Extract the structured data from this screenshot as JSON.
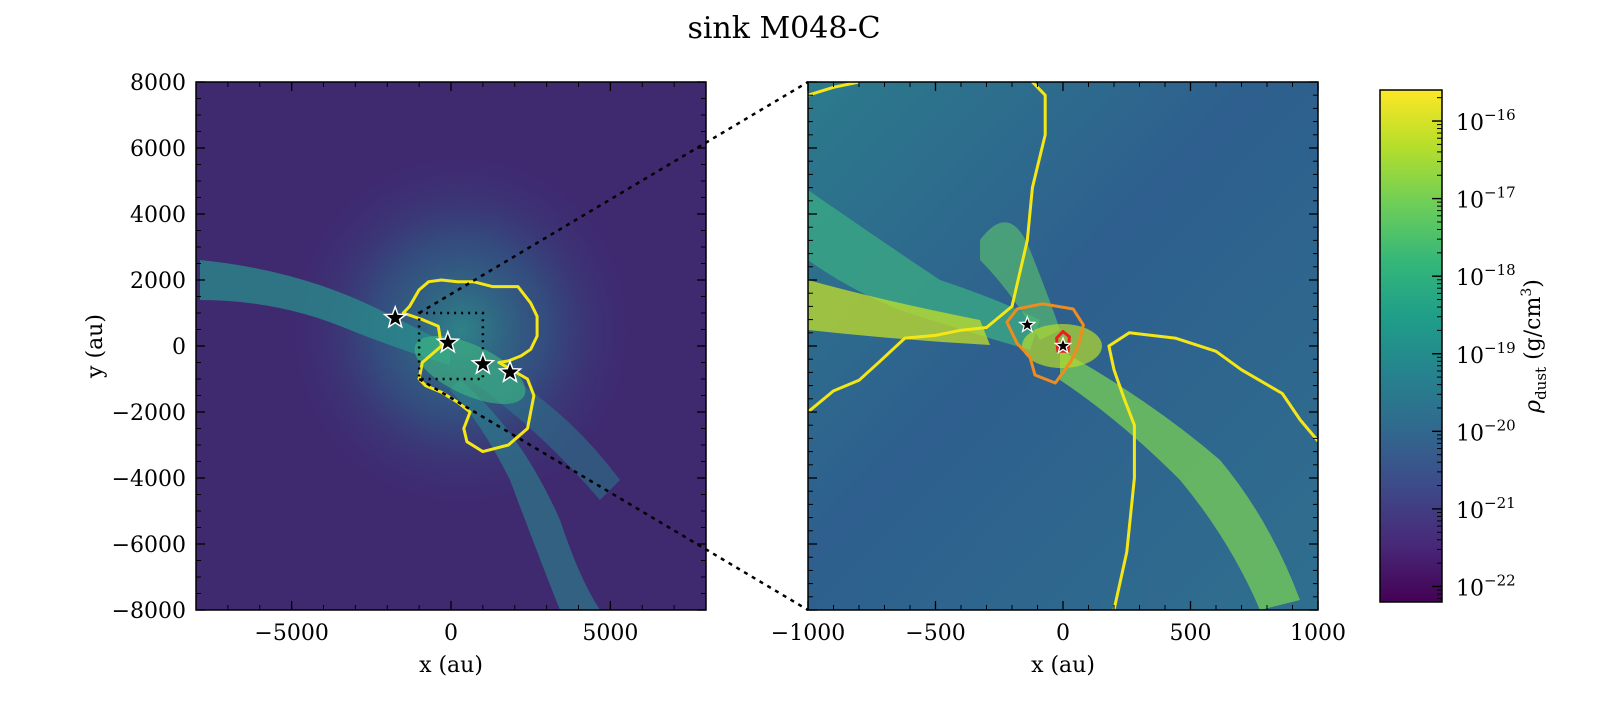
{
  "figure": {
    "title": "sink M048-C"
  },
  "chart_data": [
    {
      "type": "heatmap",
      "panel": "left",
      "xlabel": "x (au)",
      "ylabel": "y (au)",
      "xlim": [
        -8000,
        8000
      ],
      "ylim": [
        -8000,
        8000
      ],
      "xticks": [
        -5000,
        0,
        5000
      ],
      "xtick_labels": [
        "−5000",
        "0",
        "5000"
      ],
      "yticks": [
        -8000,
        -6000,
        -4000,
        -2000,
        0,
        2000,
        4000,
        6000,
        8000
      ],
      "ytick_labels": [
        "−8000",
        "−6000",
        "−4000",
        "−2000",
        "0",
        "2000",
        "4000",
        "6000",
        "8000"
      ],
      "zoom_box": {
        "x": [
          -1000,
          1000
        ],
        "y": [
          -1000,
          1000
        ]
      },
      "sinks": [
        {
          "x": -1750,
          "y": 850
        },
        {
          "x": -100,
          "y": 100
        },
        {
          "x": 1000,
          "y": -550
        },
        {
          "x": 1850,
          "y": -800
        }
      ],
      "contour_level_color": "#f5e616",
      "contour": [
        [
          -1500,
          1000
        ],
        [
          -1300,
          1200
        ],
        [
          -1000,
          1700
        ],
        [
          -700,
          1950
        ],
        [
          -300,
          2000
        ],
        [
          200,
          1950
        ],
        [
          700,
          1950
        ],
        [
          1300,
          1800
        ],
        [
          2100,
          1800
        ],
        [
          2500,
          1300
        ],
        [
          2700,
          900
        ],
        [
          2700,
          300
        ],
        [
          2500,
          -100
        ],
        [
          2200,
          -300
        ],
        [
          1800,
          -450
        ],
        [
          1500,
          -500
        ],
        [
          2400,
          -1000
        ],
        [
          2600,
          -1500
        ],
        [
          2400,
          -2500
        ],
        [
          1800,
          -3000
        ],
        [
          1000,
          -3200
        ],
        [
          500,
          -2900
        ],
        [
          400,
          -2500
        ],
        [
          600,
          -2000
        ],
        [
          200,
          -1700
        ],
        [
          -300,
          -1400
        ],
        [
          -800,
          -1200
        ],
        [
          -1000,
          -1000
        ],
        [
          -900,
          -500
        ],
        [
          -300,
          0
        ],
        [
          -400,
          600
        ],
        [
          -900,
          800
        ],
        [
          -1500,
          1000
        ]
      ],
      "colors": {
        "background": "#3f2873",
        "filament": "#2a9f8a",
        "core": "#b7de2a"
      }
    },
    {
      "type": "heatmap",
      "panel": "right",
      "xlabel": "x (au)",
      "xlim": [
        -1000,
        1000
      ],
      "ylim": [
        -1000,
        1000
      ],
      "xticks": [
        -1000,
        -500,
        0,
        500,
        1000
      ],
      "xtick_labels": [
        "−1000",
        "−500",
        "0",
        "500",
        "1000"
      ],
      "sinks": [
        {
          "x": -140,
          "y": 80
        },
        {
          "x": 0,
          "y": 0
        }
      ],
      "contours": [
        {
          "color": "#f5e616",
          "points": [
            [
              -1000,
              -250
            ],
            [
              -900,
              -170
            ],
            [
              -800,
              -130
            ],
            [
              -720,
              -60
            ],
            [
              -620,
              30
            ],
            [
              -500,
              40
            ],
            [
              -400,
              60
            ],
            [
              -300,
              70
            ],
            [
              -200,
              150
            ],
            [
              -140,
              400
            ],
            [
              -120,
              600
            ],
            [
              -70,
              800
            ],
            [
              -70,
              950
            ],
            [
              -120,
              1000
            ]
          ]
        },
        {
          "color": "#f5e616",
          "points": [
            [
              -1000,
              950
            ],
            [
              -900,
              980
            ],
            [
              -800,
              1000
            ]
          ]
        },
        {
          "color": "#f5e616",
          "points": [
            [
              200,
              -1000
            ],
            [
              250,
              -780
            ],
            [
              280,
              -500
            ],
            [
              280,
              -300
            ],
            [
              240,
              -200
            ],
            [
              200,
              -90
            ],
            [
              180,
              0
            ],
            [
              260,
              50
            ],
            [
              440,
              30
            ],
            [
              600,
              -20
            ],
            [
              700,
              -90
            ],
            [
              860,
              -180
            ],
            [
              930,
              -280
            ],
            [
              1000,
              -360
            ]
          ]
        },
        {
          "color": "#f08c1e",
          "points": [
            [
              -220,
              90
            ],
            [
              -180,
              140
            ],
            [
              -80,
              160
            ],
            [
              40,
              140
            ],
            [
              80,
              80
            ],
            [
              60,
              0
            ],
            [
              30,
              -60
            ],
            [
              -30,
              -140
            ],
            [
              -110,
              -110
            ],
            [
              -130,
              -40
            ],
            [
              -180,
              10
            ],
            [
              -220,
              90
            ]
          ]
        },
        {
          "color": "#e81e1e",
          "points": [
            [
              -20,
              -20
            ],
            [
              -25,
              30
            ],
            [
              0,
              55
            ],
            [
              25,
              35
            ],
            [
              20,
              -20
            ],
            [
              -20,
              -20
            ]
          ]
        }
      ],
      "colors": {
        "background": "#355a8c",
        "filament": "#76c95a",
        "core": "#d8e21c"
      }
    }
  ],
  "colorbar": {
    "label": "ρ",
    "label_subscript": "dust",
    "label_unit": "(g/cm",
    "label_unit_sup": "3",
    "label_unit_end": ")",
    "scale": "log",
    "range": [
      -22.2,
      -15.6
    ],
    "ticks": [
      -16,
      -17,
      -18,
      -19,
      -20,
      -21,
      -22
    ],
    "tick_base": "10",
    "tick_exponents": [
      "−16",
      "−17",
      "−18",
      "−19",
      "−20",
      "−21",
      "−22"
    ],
    "colormap": [
      "#440154",
      "#482878",
      "#3e4989",
      "#31688e",
      "#26828e",
      "#1f9e89",
      "#35b779",
      "#6ece58",
      "#b5de2b",
      "#fde725"
    ]
  }
}
